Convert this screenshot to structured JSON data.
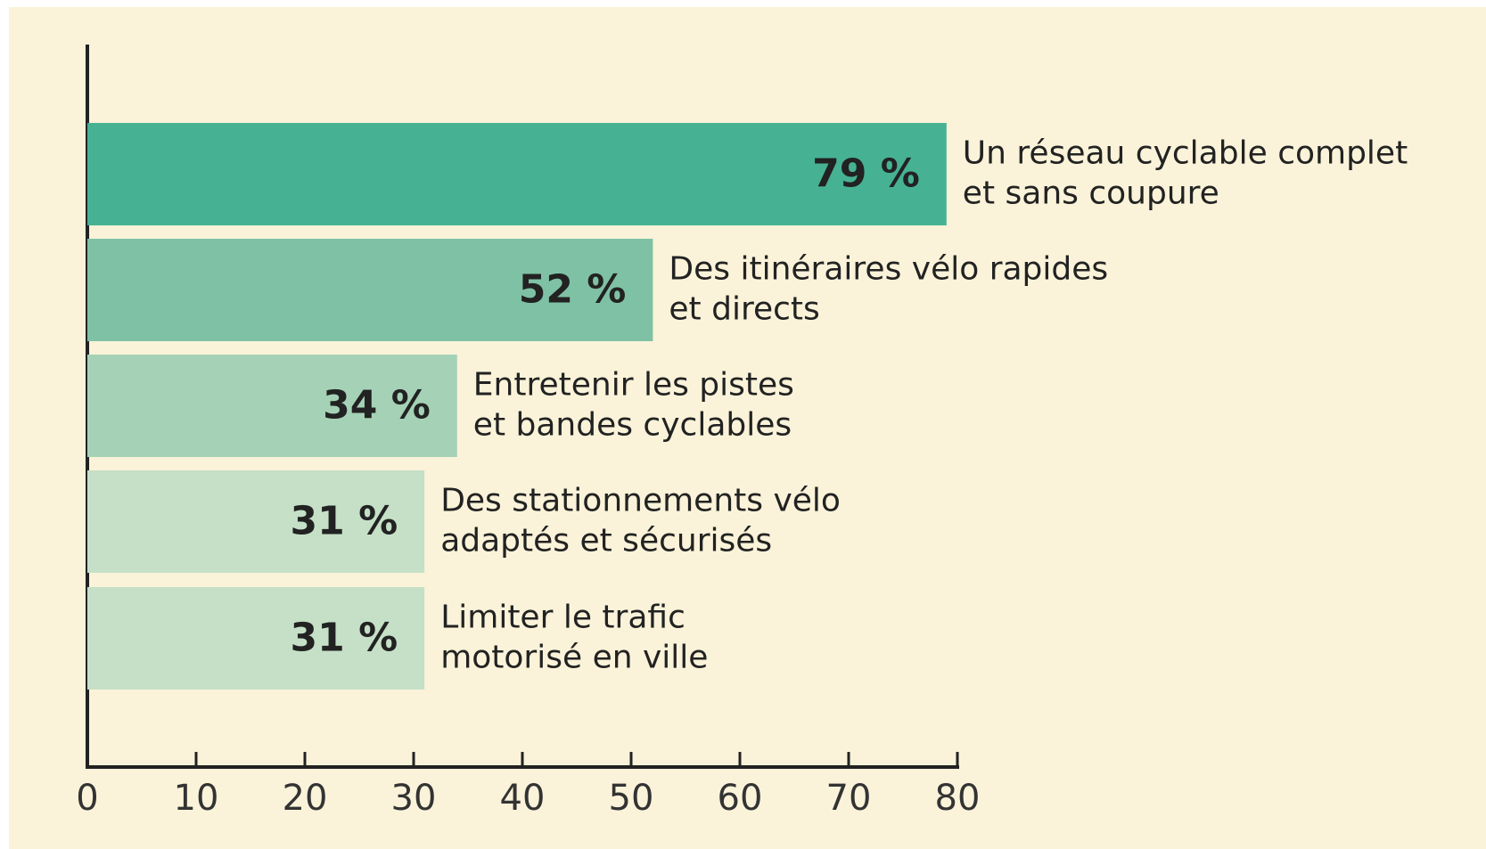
{
  "chart_data": {
    "type": "bar",
    "orientation": "horizontal",
    "categories": [
      [
        "Un réseau cyclable complet",
        "et sans coupure"
      ],
      [
        "Des itinéraires vélo rapides",
        "et directs"
      ],
      [
        "Entretenir les pistes",
        "et bandes cyclables"
      ],
      [
        "Des stationnements vélo",
        "adaptés et sécurisés"
      ],
      [
        "Limiter le trafic",
        "motorisé en ville"
      ]
    ],
    "values": [
      79,
      52,
      34,
      31,
      31
    ],
    "value_labels": [
      "79 %",
      "52 %",
      "34 %",
      "31 %",
      "31 %"
    ],
    "colors": [
      "#46b293",
      "#7fc1a5",
      "#a5d2b6",
      "#c5e0c7",
      "#c5e0c7"
    ],
    "xlim": [
      0,
      80
    ],
    "xticks": [
      0,
      10,
      20,
      30,
      40,
      50,
      60,
      70,
      80
    ]
  }
}
